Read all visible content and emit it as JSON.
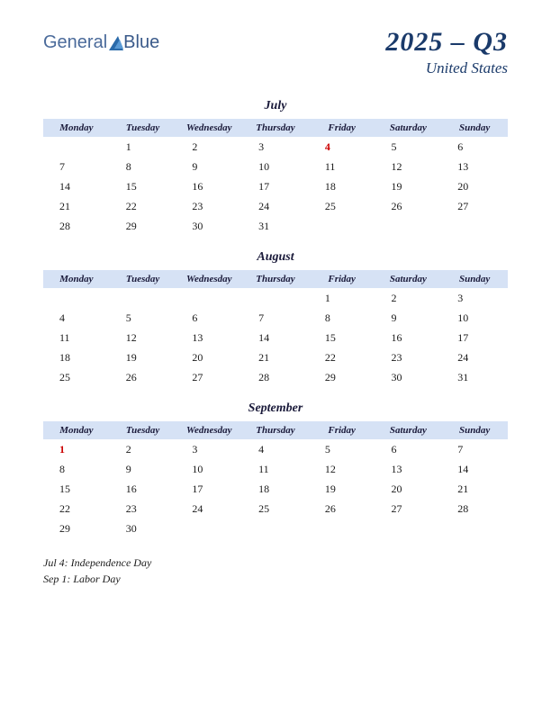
{
  "logo": {
    "part1": "General",
    "part2": "Blue"
  },
  "header": {
    "title": "2025 – Q3",
    "subtitle": "United States"
  },
  "colors": {
    "header_bg": "#d6e2f5",
    "text_dark": "#1a1a3a",
    "title_color": "#1a3a6a",
    "holiday_color": "#cc0000"
  },
  "day_headers": [
    "Monday",
    "Tuesday",
    "Wednesday",
    "Thursday",
    "Friday",
    "Saturday",
    "Sunday"
  ],
  "months": [
    {
      "name": "July",
      "weeks": [
        [
          "",
          "1",
          "2",
          "3",
          "4",
          "5",
          "6"
        ],
        [
          "7",
          "8",
          "9",
          "10",
          "11",
          "12",
          "13"
        ],
        [
          "14",
          "15",
          "16",
          "17",
          "18",
          "19",
          "20"
        ],
        [
          "21",
          "22",
          "23",
          "24",
          "25",
          "26",
          "27"
        ],
        [
          "28",
          "29",
          "30",
          "31",
          "",
          "",
          ""
        ]
      ],
      "holidays": [
        [
          0,
          4
        ]
      ]
    },
    {
      "name": "August",
      "weeks": [
        [
          "",
          "",
          "",
          "",
          "1",
          "2",
          "3"
        ],
        [
          "4",
          "5",
          "6",
          "7",
          "8",
          "9",
          "10"
        ],
        [
          "11",
          "12",
          "13",
          "14",
          "15",
          "16",
          "17"
        ],
        [
          "18",
          "19",
          "20",
          "21",
          "22",
          "23",
          "24"
        ],
        [
          "25",
          "26",
          "27",
          "28",
          "29",
          "30",
          "31"
        ]
      ],
      "holidays": []
    },
    {
      "name": "September",
      "weeks": [
        [
          "1",
          "2",
          "3",
          "4",
          "5",
          "6",
          "7"
        ],
        [
          "8",
          "9",
          "10",
          "11",
          "12",
          "13",
          "14"
        ],
        [
          "15",
          "16",
          "17",
          "18",
          "19",
          "20",
          "21"
        ],
        [
          "22",
          "23",
          "24",
          "25",
          "26",
          "27",
          "28"
        ],
        [
          "29",
          "30",
          "",
          "",
          "",
          "",
          ""
        ]
      ],
      "holidays": [
        [
          0,
          0
        ]
      ]
    }
  ],
  "holiday_list": [
    "Jul 4:  Independence Day",
    "Sep 1:  Labor Day"
  ]
}
